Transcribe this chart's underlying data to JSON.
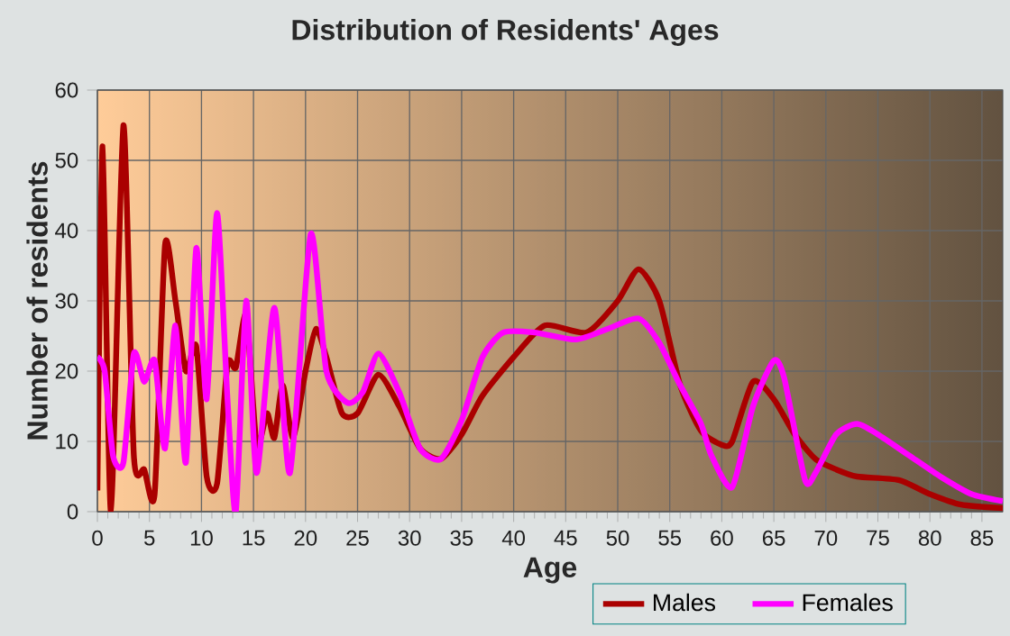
{
  "chart_data": {
    "type": "line",
    "title": "Distribution of Residents' Ages",
    "xlabel": "Age",
    "ylabel": "Number of residents",
    "xlim": [
      0,
      87
    ],
    "ylim": [
      0,
      60
    ],
    "xticks": [
      0,
      5,
      10,
      15,
      20,
      25,
      30,
      35,
      40,
      45,
      50,
      55,
      60,
      65,
      70,
      75,
      80,
      85
    ],
    "yticks": [
      0,
      10,
      20,
      30,
      40,
      50,
      60
    ],
    "grid": true,
    "legend": "bottom",
    "series": [
      {
        "name": "Males",
        "color": "#aa0000",
        "x": [
          0,
          0.5,
          1.3,
          2.5,
          3.5,
          4.5,
          5.5,
          6.5,
          7.5,
          8.5,
          9.5,
          10.5,
          11.5,
          12.5,
          13.3,
          14.3,
          15.3,
          16.3,
          17,
          17.8,
          18.8,
          20,
          21,
          22,
          23.5,
          25,
          27,
          29,
          31,
          33,
          35,
          37,
          40,
          43,
          47,
          50,
          52,
          54,
          56,
          58,
          60,
          61,
          63,
          65,
          67,
          69,
          71,
          73,
          77,
          80,
          83,
          87
        ],
        "values": [
          3,
          52,
          0,
          55,
          8,
          6,
          2.5,
          38,
          30,
          20,
          23.5,
          5,
          4,
          21,
          20.5,
          28,
          9.5,
          14,
          10.5,
          18,
          10.5,
          20,
          26,
          22,
          14,
          14,
          19.5,
          15,
          9,
          7.5,
          11,
          16.5,
          22,
          26.5,
          25.5,
          30,
          34.5,
          30,
          18,
          11.5,
          9.5,
          10,
          18.5,
          16,
          11,
          7.5,
          6,
          5,
          4.5,
          2.5,
          1,
          0.5
        ]
      },
      {
        "name": "Females",
        "color": "#ff00ff",
        "x": [
          0,
          0.7,
          1.5,
          2.5,
          3.5,
          4.5,
          5.5,
          6.5,
          7.5,
          8.5,
          9.5,
          10.5,
          11.5,
          12.5,
          13.3,
          14.3,
          15.3,
          17,
          18.5,
          20.5,
          22,
          24,
          25.5,
          27,
          29,
          31,
          33,
          35,
          37,
          39,
          42,
          46,
          49,
          52,
          54,
          56,
          58,
          59,
          61,
          63,
          65,
          66,
          68,
          69,
          71,
          73,
          75,
          78,
          81,
          84,
          87
        ],
        "values": [
          22,
          20,
          8,
          7,
          22.5,
          18.5,
          21.5,
          9,
          26.5,
          7,
          37.5,
          16,
          42.5,
          16,
          0,
          30,
          5.5,
          29,
          5.5,
          39.5,
          20,
          15.5,
          17,
          22.5,
          17,
          9,
          7.5,
          13,
          22,
          25.5,
          25.5,
          24.5,
          26,
          27.5,
          24,
          18,
          12.5,
          8,
          3.5,
          15,
          21.5,
          19,
          4.5,
          5.5,
          11,
          12.5,
          11,
          8,
          5,
          2.5,
          1.5
        ]
      }
    ]
  }
}
